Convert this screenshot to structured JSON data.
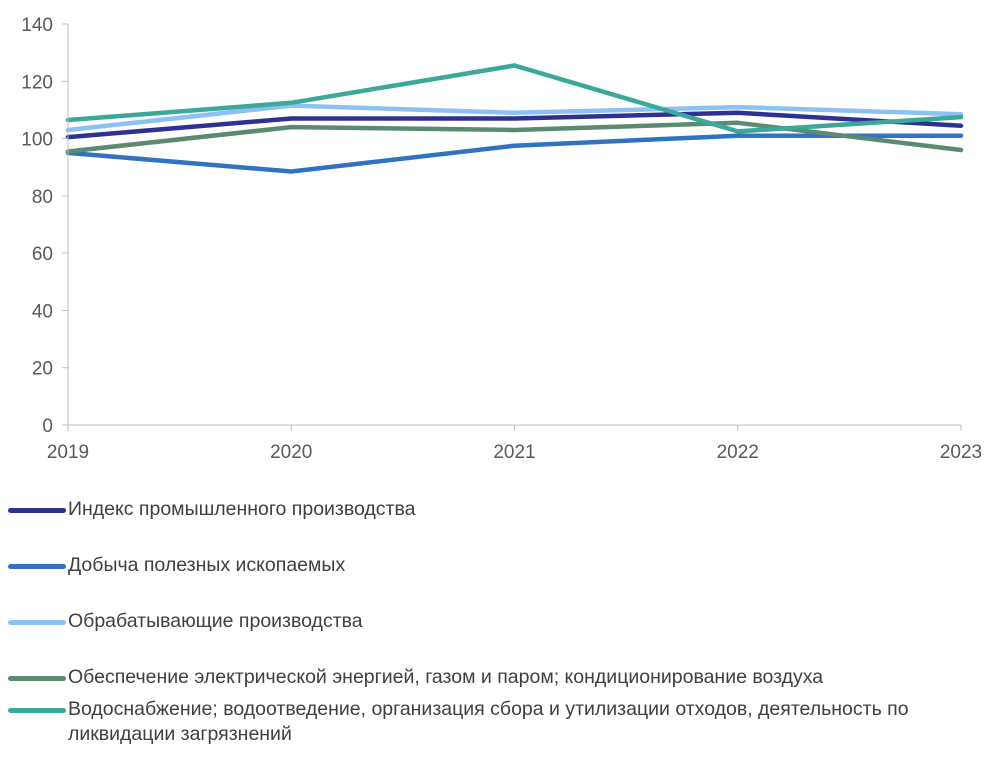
{
  "chart_data": {
    "type": "line",
    "x": [
      "2019",
      "2020",
      "2021",
      "2022",
      "2023"
    ],
    "ylim": [
      0,
      140
    ],
    "yticks": [
      "0",
      "20",
      "40",
      "60",
      "80",
      "100",
      "120",
      "140"
    ],
    "grid": false,
    "legend_position": "bottom",
    "series": [
      {
        "name": "Индекс промышленного производства",
        "color": "#2E3192",
        "values": [
          100.5,
          107.0,
          107.0,
          109.0,
          104.5
        ]
      },
      {
        "name": "Добыча полезных ископаемых",
        "color": "#3173C1",
        "values": [
          95.0,
          88.5,
          97.5,
          101.0,
          101.0
        ]
      },
      {
        "name": "Обрабатывающие производства",
        "color": "#8EC1F3",
        "values": [
          103.0,
          111.5,
          109.0,
          111.0,
          108.5
        ]
      },
      {
        "name": "Обеспечение электрической энергией, газом и паром; кондиционирование воздуха",
        "color": "#5A8A72",
        "values": [
          95.5,
          104.0,
          103.0,
          105.5,
          96.0
        ]
      },
      {
        "name": "Водоснабжение; водоотведение, организация сбора и утилизации отходов, деятельность по ликвидации загрязнений",
        "color": "#3BA89A",
        "values": [
          106.5,
          112.5,
          125.5,
          102.5,
          107.5
        ]
      }
    ]
  }
}
